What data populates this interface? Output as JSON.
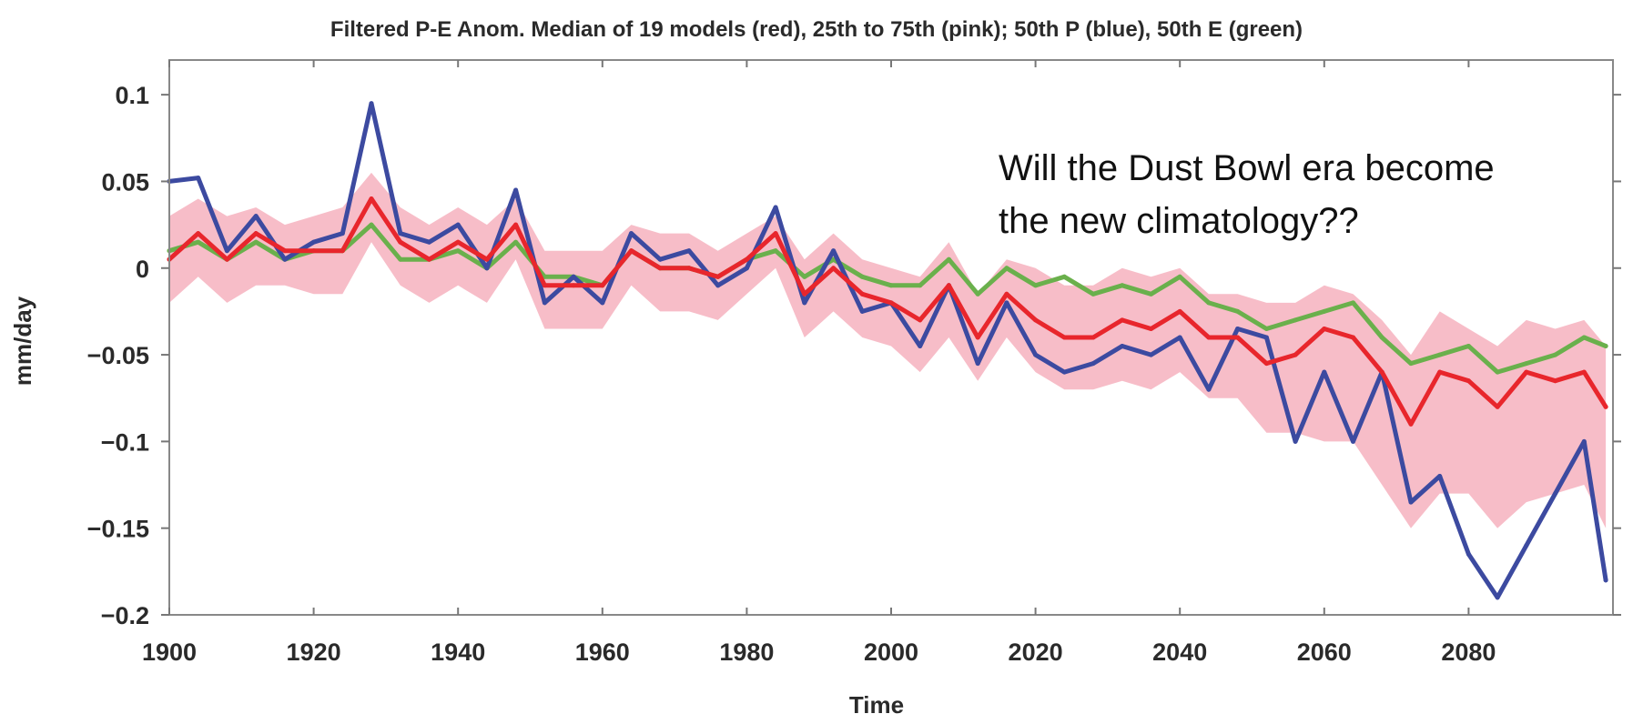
{
  "chart_data": {
    "type": "line",
    "title": "Filtered P-E Anom. Median of 19 models (red), 25th to 75th (pink); 50th P (blue), 50th E (green)",
    "xlabel": "Time",
    "ylabel": "mm/day",
    "xlim": [
      1900,
      2100
    ],
    "ylim": [
      -0.2,
      0.12
    ],
    "x_ticks": [
      1900,
      1920,
      1940,
      1960,
      1980,
      2000,
      2020,
      2040,
      2060,
      2080
    ],
    "x_tick_labels": [
      "1900",
      "1920",
      "1940",
      "1960",
      "1980",
      "2000",
      "2020",
      "2040",
      "2060",
      "2080"
    ],
    "y_ticks": [
      0.1,
      0.05,
      0,
      -0.05,
      -0.1,
      -0.15,
      -0.2
    ],
    "y_tick_labels": [
      "0.1",
      "0.05",
      "0",
      "−0.05",
      "−0.1",
      "−0.15",
      "−0.2"
    ],
    "grid": false,
    "annotation": {
      "line1": "Will the Dust Bowl era become",
      "line2": "the new climatology??"
    },
    "x": [
      1900,
      1904,
      1908,
      1912,
      1916,
      1920,
      1924,
      1928,
      1932,
      1936,
      1940,
      1944,
      1948,
      1952,
      1956,
      1960,
      1964,
      1968,
      1972,
      1976,
      1980,
      1984,
      1988,
      1992,
      1996,
      2000,
      2004,
      2008,
      2012,
      2016,
      2020,
      2024,
      2028,
      2032,
      2036,
      2040,
      2044,
      2048,
      2052,
      2056,
      2060,
      2064,
      2068,
      2072,
      2076,
      2080,
      2084,
      2088,
      2092,
      2096,
      2099
    ],
    "series": [
      {
        "role": "50th P",
        "color": "#3c4aa0",
        "values": [
          0.05,
          0.052,
          0.01,
          0.03,
          0.005,
          0.015,
          0.02,
          0.095,
          0.02,
          0.015,
          0.025,
          0.0,
          0.045,
          -0.02,
          -0.005,
          -0.02,
          0.02,
          0.005,
          0.01,
          -0.01,
          0.0,
          0.035,
          -0.02,
          0.01,
          -0.025,
          -0.02,
          -0.045,
          -0.01,
          -0.055,
          -0.02,
          -0.05,
          -0.06,
          -0.055,
          -0.045,
          -0.05,
          -0.04,
          -0.07,
          -0.035,
          -0.04,
          -0.1,
          -0.06,
          -0.1,
          -0.06,
          -0.135,
          -0.12,
          -0.165,
          -0.19,
          -0.16,
          -0.13,
          -0.1,
          -0.18
        ]
      },
      {
        "role": "median P-E",
        "color": "#e8262c",
        "values": [
          0.005,
          0.02,
          0.005,
          0.02,
          0.01,
          0.01,
          0.01,
          0.04,
          0.015,
          0.005,
          0.015,
          0.005,
          0.025,
          -0.01,
          -0.01,
          -0.01,
          0.01,
          0.0,
          0.0,
          -0.005,
          0.005,
          0.02,
          -0.015,
          0.0,
          -0.015,
          -0.02,
          -0.03,
          -0.01,
          -0.04,
          -0.015,
          -0.03,
          -0.04,
          -0.04,
          -0.03,
          -0.035,
          -0.025,
          -0.04,
          -0.04,
          -0.055,
          -0.05,
          -0.035,
          -0.04,
          -0.06,
          -0.09,
          -0.06,
          -0.065,
          -0.08,
          -0.06,
          -0.065,
          -0.06,
          -0.08
        ]
      },
      {
        "role": "50th E",
        "color": "#6ab04c",
        "values": [
          0.01,
          0.015,
          0.005,
          0.015,
          0.005,
          0.01,
          0.01,
          0.025,
          0.005,
          0.005,
          0.01,
          0.0,
          0.015,
          -0.005,
          -0.005,
          -0.01,
          0.01,
          0.0,
          0.0,
          -0.005,
          0.005,
          0.01,
          -0.005,
          0.005,
          -0.005,
          -0.01,
          -0.01,
          0.005,
          -0.015,
          0.0,
          -0.01,
          -0.005,
          -0.015,
          -0.01,
          -0.015,
          -0.005,
          -0.02,
          -0.025,
          -0.035,
          -0.03,
          -0.025,
          -0.02,
          -0.04,
          -0.055,
          -0.05,
          -0.045,
          -0.06,
          -0.055,
          -0.05,
          -0.04,
          -0.045
        ]
      }
    ],
    "band": {
      "role": "25th to 75th",
      "color": "#f4a7b6",
      "upper": [
        0.03,
        0.04,
        0.03,
        0.035,
        0.025,
        0.03,
        0.035,
        0.055,
        0.035,
        0.025,
        0.035,
        0.025,
        0.04,
        0.01,
        0.01,
        0.01,
        0.025,
        0.02,
        0.02,
        0.01,
        0.02,
        0.03,
        0.005,
        0.02,
        0.005,
        0.0,
        -0.005,
        0.015,
        -0.015,
        0.005,
        0.0,
        -0.01,
        -0.01,
        0.0,
        -0.005,
        0.0,
        -0.015,
        -0.015,
        -0.02,
        -0.02,
        -0.01,
        -0.015,
        -0.03,
        -0.05,
        -0.025,
        -0.035,
        -0.045,
        -0.03,
        -0.035,
        -0.03,
        -0.045
      ],
      "lower": [
        -0.02,
        -0.005,
        -0.02,
        -0.01,
        -0.01,
        -0.015,
        -0.015,
        0.015,
        -0.01,
        -0.02,
        -0.01,
        -0.02,
        0.005,
        -0.035,
        -0.035,
        -0.035,
        -0.01,
        -0.025,
        -0.025,
        -0.03,
        -0.015,
        0.0,
        -0.04,
        -0.025,
        -0.04,
        -0.045,
        -0.06,
        -0.04,
        -0.065,
        -0.04,
        -0.06,
        -0.07,
        -0.07,
        -0.065,
        -0.07,
        -0.06,
        -0.075,
        -0.075,
        -0.095,
        -0.095,
        -0.1,
        -0.1,
        -0.125,
        -0.15,
        -0.13,
        -0.13,
        -0.15,
        -0.135,
        -0.13,
        -0.125,
        -0.15
      ]
    }
  }
}
